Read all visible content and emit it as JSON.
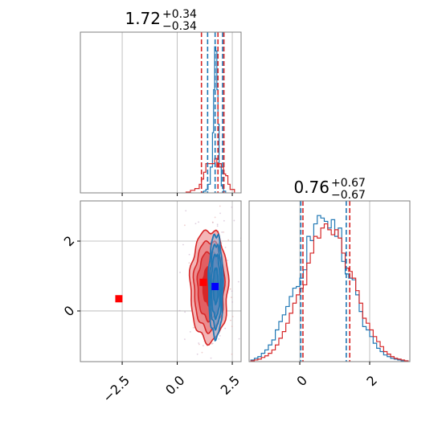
{
  "chart_data": [
    {
      "type": "step-histogram",
      "panel": "marginal-1",
      "title": {
        "value": "1.72",
        "plus": "+0.34",
        "minus": "−0.34"
      },
      "xlim": [
        -4.4,
        2.9
      ],
      "grid": true,
      "show_x_tick_labels": false,
      "x_ticks": [
        -2.5,
        0.0,
        2.5
      ],
      "series": [
        {
          "color": "#1f77b4",
          "bins": [
            1.1,
            1.2,
            1.3,
            1.4,
            1.5,
            1.6,
            1.65,
            1.7,
            1.75,
            1.8,
            1.85,
            1.9,
            2.0,
            2.1,
            2.2
          ],
          "counts": [
            1,
            2,
            4,
            10,
            30,
            70,
            120,
            170,
            165,
            120,
            80,
            30,
            8,
            2
          ]
        },
        {
          "color": "#d62728",
          "bins": [
            0.4,
            0.6,
            0.8,
            1.0,
            1.1,
            1.2,
            1.3,
            1.4,
            1.5,
            1.6,
            1.7,
            1.8,
            1.9,
            2.0,
            2.1,
            2.2,
            2.3,
            2.4,
            2.6
          ],
          "counts": [
            1,
            3,
            5,
            10,
            16,
            24,
            34,
            34,
            34,
            34,
            40,
            30,
            34,
            30,
            22,
            20,
            10,
            4
          ]
        }
      ],
      "vlines": [
        {
          "x": 1.38,
          "color": "#1f77b4"
        },
        {
          "x": 1.72,
          "color": "#1f77b4"
        },
        {
          "x": 2.06,
          "color": "#1f77b4"
        },
        {
          "x": 1.1,
          "color": "#d62728"
        },
        {
          "x": 1.85,
          "color": "#d62728"
        },
        {
          "x": 2.12,
          "color": "#d62728"
        }
      ]
    },
    {
      "type": "contour",
      "panel": "joint",
      "xlim": [
        -4.4,
        2.9
      ],
      "ylim": [
        -1.45,
        3.15
      ],
      "grid": true,
      "x_ticks": [
        -2.5,
        0.0,
        2.5
      ],
      "x_tick_labels": [
        "−2.5",
        "0.0",
        "2.5"
      ],
      "y_ticks": [
        0,
        2
      ],
      "y_tick_labels": [
        "0",
        "2"
      ],
      "red_contours": {
        "center": [
          1.45,
          0.72
        ],
        "sigma": [
          0.42,
          0.78
        ],
        "levels": [
          0.7,
          1.25,
          1.65,
          2.05
        ]
      },
      "blue_contours": {
        "center": [
          1.75,
          0.72
        ],
        "sigma": [
          0.16,
          0.72
        ],
        "levels": [
          0.7,
          1.25,
          1.65,
          2.05
        ]
      },
      "markers": [
        {
          "x": -2.65,
          "y": 0.35,
          "color": "#ff0000"
        },
        {
          "x": 1.18,
          "y": 0.82,
          "color": "#ff0000"
        },
        {
          "x": 1.72,
          "y": 0.7,
          "color": "#0000ff"
        }
      ]
    },
    {
      "type": "step-histogram",
      "panel": "marginal-2",
      "title": {
        "value": "0.76",
        "plus": "+0.67",
        "minus": "−0.67"
      },
      "xlim": [
        -1.45,
        3.15
      ],
      "grid": true,
      "x_ticks": [
        0,
        2
      ],
      "x_tick_labels": [
        "0",
        "2"
      ],
      "series": [
        {
          "color": "#1f77b4",
          "bins": [
            -1.4,
            -1.3,
            -1.2,
            -1.1,
            -1.0,
            -0.9,
            -0.8,
            -0.7,
            -0.6,
            -0.5,
            -0.4,
            -0.3,
            -0.2,
            -0.1,
            0.0,
            0.1,
            0.2,
            0.3,
            0.4,
            0.5,
            0.6,
            0.7,
            0.8,
            0.9,
            1.0,
            1.1,
            1.2,
            1.3,
            1.4,
            1.5,
            1.6,
            1.7,
            1.8,
            1.9,
            2.0,
            2.1,
            2.2,
            2.3,
            2.4,
            2.5,
            2.6,
            2.7,
            2.8,
            2.9,
            3.0,
            3.1
          ],
          "counts": [
            2,
            4,
            6,
            10,
            14,
            20,
            26,
            38,
            48,
            56,
            66,
            78,
            88,
            90,
            100,
            110,
            150,
            145,
            165,
            175,
            172,
            168,
            160,
            170,
            150,
            160,
            120,
            105,
            100,
            98,
            80,
            60,
            42,
            38,
            30,
            22,
            16,
            12,
            8,
            6,
            4,
            3,
            2,
            1,
            1
          ]
        },
        {
          "color": "#d62728",
          "bins": [
            -1.4,
            -1.3,
            -1.2,
            -1.1,
            -1.0,
            -0.9,
            -0.8,
            -0.7,
            -0.6,
            -0.5,
            -0.4,
            -0.3,
            -0.2,
            -0.1,
            0.0,
            0.1,
            0.2,
            0.3,
            0.4,
            0.5,
            0.6,
            0.7,
            0.8,
            0.9,
            1.0,
            1.1,
            1.2,
            1.3,
            1.4,
            1.5,
            1.6,
            1.7,
            1.8,
            1.9,
            2.0,
            2.1,
            2.2,
            2.3,
            2.4,
            2.5,
            2.6,
            2.7,
            2.8,
            2.9,
            3.0,
            3.1
          ],
          "counts": [
            1,
            2,
            3,
            5,
            7,
            10,
            14,
            20,
            28,
            36,
            46,
            58,
            70,
            80,
            88,
            92,
            118,
            130,
            150,
            148,
            160,
            165,
            158,
            152,
            158,
            148,
            130,
            112,
            108,
            100,
            85,
            70,
            52,
            46,
            38,
            30,
            24,
            18,
            12,
            9,
            6,
            4,
            3,
            2,
            1
          ]
        }
      ],
      "vlines": [
        {
          "x": 0.03,
          "color": "#1f77b4"
        },
        {
          "x": 1.33,
          "color": "#1f77b4"
        },
        {
          "x": 0.09,
          "color": "#d62728"
        },
        {
          "x": 1.43,
          "color": "#d62728"
        }
      ]
    }
  ]
}
